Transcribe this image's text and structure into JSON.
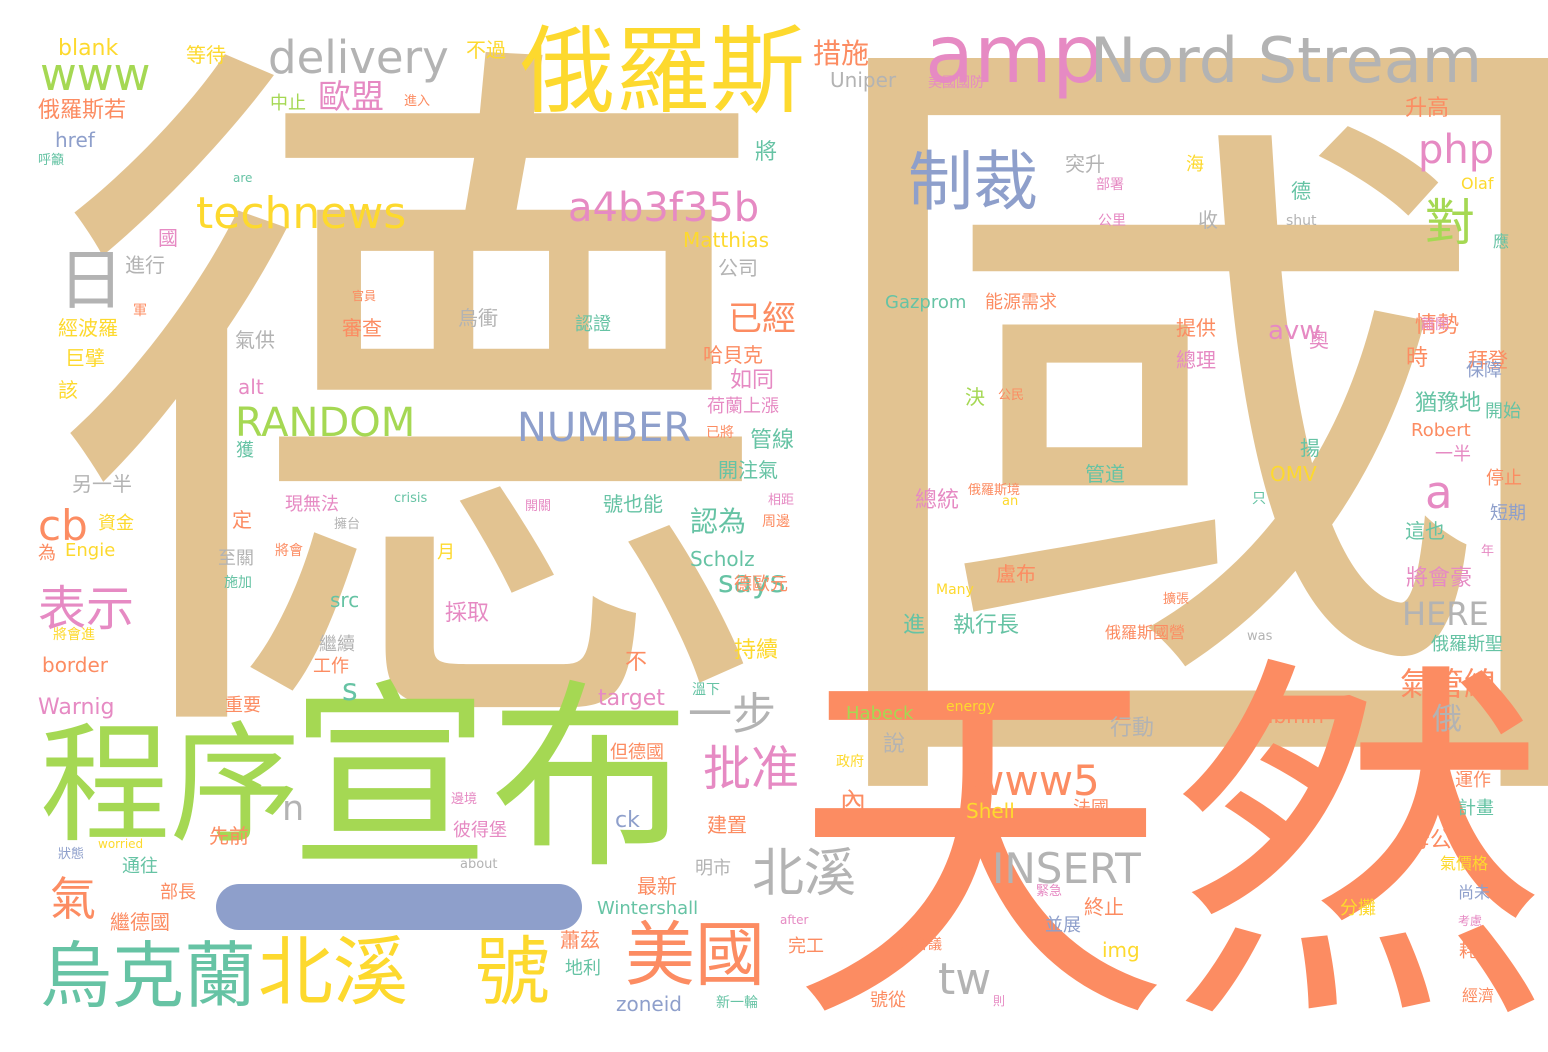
{
  "palette": {
    "tan": "#e2c391",
    "orange": "#fc8c62",
    "green": "#a5d853",
    "yellow": "#fdd92e",
    "pink": "#e68ac3",
    "blue": "#8e9fcb",
    "teal": "#66c3a4",
    "gray": "#b3b3b3",
    "bar": "#8e9fcb"
  },
  "words": [
    {
      "text": "德"
    },
    {
      "text": "國"
    },
    {
      "text": "天然"
    },
    {
      "text": "宣布"
    },
    {
      "text": "程序"
    },
    {
      "text": "俄羅斯"
    },
    {
      "text": "amp"
    },
    {
      "text": "Nord Stream"
    },
    {
      "text": "烏克蘭"
    },
    {
      "text": "北溪"
    },
    {
      "text": "號"
    },
    {
      "text": "美國"
    },
    {
      "text": "制裁"
    },
    {
      "text": "日"
    },
    {
      "text": "www"
    },
    {
      "text": "delivery"
    },
    {
      "text": "technews"
    },
    {
      "text": "a4b3f35b"
    },
    {
      "text": "對"
    },
    {
      "text": "php"
    },
    {
      "text": "RANDOM"
    },
    {
      "text": "NUMBER"
    },
    {
      "text": "www5"
    },
    {
      "text": "北溪"
    },
    {
      "text": "INSERT"
    },
    {
      "text": "表示"
    },
    {
      "text": "批准"
    },
    {
      "text": "一步"
    },
    {
      "text": "cb"
    },
    {
      "text": "氣"
    },
    {
      "text": "tw"
    },
    {
      "text": "a"
    },
    {
      "text": "歐盟"
    },
    {
      "text": "已經"
    },
    {
      "text": "措施"
    },
    {
      "text": "氣管線"
    },
    {
      "text": "HERE"
    },
    {
      "text": "says"
    },
    {
      "text": "認為"
    },
    {
      "text": "n"
    },
    {
      "text": "s"
    },
    {
      "text": "內"
    },
    {
      "text": "avw"
    },
    {
      "text": "blank"
    },
    {
      "text": "等待"
    },
    {
      "text": "不過"
    },
    {
      "text": "俄羅斯若"
    },
    {
      "text": "href"
    },
    {
      "text": "中止"
    },
    {
      "text": "Uniper"
    },
    {
      "text": "美國國防"
    },
    {
      "text": "升高"
    },
    {
      "text": "Olaf"
    },
    {
      "text": "進入"
    },
    {
      "text": "呼籲"
    },
    {
      "text": "are"
    },
    {
      "text": "將"
    },
    {
      "text": "突升"
    },
    {
      "text": "海"
    },
    {
      "text": "國"
    },
    {
      "text": "進行"
    },
    {
      "text": "Matthias"
    },
    {
      "text": "公司"
    },
    {
      "text": "Gazprom"
    },
    {
      "text": "能源需求"
    },
    {
      "text": "經波羅"
    },
    {
      "text": "巨擘"
    },
    {
      "text": "該"
    },
    {
      "text": "氣供"
    },
    {
      "text": "官員"
    },
    {
      "text": "審查"
    },
    {
      "text": "烏衝"
    },
    {
      "text": "認證"
    },
    {
      "text": "提供"
    },
    {
      "text": "總理"
    },
    {
      "text": "情勢"
    },
    {
      "text": "拜登"
    },
    {
      "text": "時"
    },
    {
      "text": "保障"
    },
    {
      "text": "alt"
    },
    {
      "text": "哈貝克"
    },
    {
      "text": "如同"
    },
    {
      "text": "荷蘭上漲"
    },
    {
      "text": "猶豫地"
    },
    {
      "text": "開始"
    },
    {
      "text": "Robert"
    },
    {
      "text": "另一半"
    },
    {
      "text": "獲"
    },
    {
      "text": "管線"
    },
    {
      "text": "開注氣"
    },
    {
      "text": "決"
    },
    {
      "text": "公民"
    },
    {
      "text": "揚"
    },
    {
      "text": "一半"
    },
    {
      "text": "停止"
    },
    {
      "text": "資金"
    },
    {
      "text": "crisis"
    },
    {
      "text": "總統"
    },
    {
      "text": "俄羅斯境"
    },
    {
      "text": "管道"
    },
    {
      "text": "OMV"
    },
    {
      "text": "短期"
    },
    {
      "text": "為"
    },
    {
      "text": "Engie"
    },
    {
      "text": "定"
    },
    {
      "text": "現無法"
    },
    {
      "text": "號也能"
    },
    {
      "text": "這也"
    },
    {
      "text": "年"
    },
    {
      "text": "至關"
    },
    {
      "text": "Scholz"
    },
    {
      "text": "將會豪"
    },
    {
      "text": "月"
    },
    {
      "text": "施加"
    },
    {
      "text": "德歐元"
    },
    {
      "text": "盧布"
    },
    {
      "text": "Many"
    },
    {
      "text": "src"
    },
    {
      "text": "採取"
    },
    {
      "text": "執行長"
    },
    {
      "text": "進"
    },
    {
      "text": "俄羅斯國營"
    },
    {
      "text": "俄羅斯聖"
    },
    {
      "text": "將會進"
    },
    {
      "text": "border"
    },
    {
      "text": "持續"
    },
    {
      "text": "不"
    },
    {
      "text": "工作"
    },
    {
      "text": "Warnig"
    },
    {
      "text": "重要"
    },
    {
      "text": "target"
    },
    {
      "text": "Habeck"
    },
    {
      "text": "energy"
    },
    {
      "text": "Lubmin"
    },
    {
      "text": "行動"
    },
    {
      "text": "俄"
    },
    {
      "text": "沒"
    },
    {
      "text": "但德國"
    },
    {
      "text": "政府"
    },
    {
      "text": "說"
    },
    {
      "text": "運作"
    },
    {
      "text": "計畫"
    },
    {
      "text": "Shell"
    },
    {
      "text": "法國"
    },
    {
      "text": "建置"
    },
    {
      "text": "ck"
    },
    {
      "text": "彼得堡"
    },
    {
      "text": "先前"
    },
    {
      "text": "通往"
    },
    {
      "text": "母公司"
    },
    {
      "text": "氣價格"
    },
    {
      "text": "最新"
    },
    {
      "text": "明市"
    },
    {
      "text": "部長"
    },
    {
      "text": "繼德國"
    },
    {
      "text": "Wintershall"
    },
    {
      "text": "終止"
    },
    {
      "text": "並展"
    },
    {
      "text": "分攤"
    },
    {
      "text": "尚未"
    },
    {
      "text": "完工"
    },
    {
      "text": "蕭茲"
    },
    {
      "text": "地利"
    },
    {
      "text": "img"
    },
    {
      "text": "耗資"
    },
    {
      "text": "zoneid"
    },
    {
      "text": "新一輪"
    },
    {
      "text": "號從"
    },
    {
      "text": "經濟"
    },
    {
      "text": "about"
    },
    {
      "text": "worried"
    },
    {
      "text": "after"
    },
    {
      "text": "急會議"
    },
    {
      "text": "緊急"
    },
    {
      "text": "部署"
    },
    {
      "text": "公里"
    },
    {
      "text": "shut"
    },
    {
      "text": "只"
    },
    {
      "text": "將會"
    },
    {
      "text": "相距"
    },
    {
      "text": "周邊"
    },
    {
      "text": "was"
    },
    {
      "text": "軍"
    },
    {
      "text": "離開"
    },
    {
      "text": "應"
    },
    {
      "text": "德"
    },
    {
      "text": "收"
    },
    {
      "text": "奧"
    },
    {
      "text": "an"
    },
    {
      "text": "已將"
    },
    {
      "text": "擴張"
    },
    {
      "text": "繼續"
    },
    {
      "text": "溫下"
    },
    {
      "text": "狀態"
    },
    {
      "text": "邊境"
    },
    {
      "text": "考慮"
    },
    {
      "text": "則"
    },
    {
      "text": "開關"
    },
    {
      "text": "擁台"
    }
  ]
}
